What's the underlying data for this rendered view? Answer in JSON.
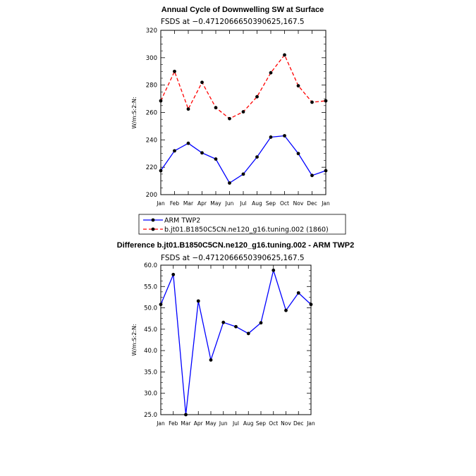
{
  "chart_data": [
    {
      "type": "line",
      "title": "Annual Cycle of Downwelling SW at Surface",
      "subtitle": "FSDS at −0.4712066650390625,167.5",
      "ylabel": "W/m:S:2:N:",
      "categories": [
        "Jan",
        "Feb",
        "Mar",
        "Apr",
        "May",
        "Jun",
        "Jul",
        "Aug",
        "Sep",
        "Oct",
        "Nov",
        "Dec",
        "Jan"
      ],
      "ylim": [
        200,
        320
      ],
      "yticks": [
        "200",
        "220",
        "240",
        "260",
        "280",
        "300",
        "320"
      ],
      "series": [
        {
          "name": "ARM TWP2",
          "color": "#0000ff",
          "dash": "solid",
          "values": [
            217.5,
            232,
            237.5,
            230.5,
            226,
            208.5,
            215,
            227.5,
            242,
            243,
            230,
            214,
            217.5
          ]
        },
        {
          "name": "b.jt01.B1850C5CN.ne120_g16.tuning.002 (1860)",
          "color": "#ff0000",
          "dash": "dashed",
          "values": [
            268.5,
            290,
            262.5,
            282,
            263.5,
            255.5,
            260.5,
            271.5,
            289,
            302,
            279.5,
            267.5,
            268.5
          ]
        }
      ]
    },
    {
      "type": "line",
      "title": "Difference b.jt01.B1850C5CN.ne120_g16.tuning.002 - ARM TWP2",
      "subtitle": "FSDS at −0.4712066650390625,167.5",
      "ylabel": "W/m:S:2:N:",
      "categories": [
        "Jan",
        "Feb",
        "Mar",
        "Apr",
        "May",
        "Jun",
        "Jul",
        "Aug",
        "Sep",
        "Oct",
        "Nov",
        "Dec",
        "Jan"
      ],
      "ylim": [
        25,
        60
      ],
      "yticks": [
        "25.0",
        "30.0",
        "35.0",
        "40.0",
        "45.0",
        "50.0",
        "55.0",
        "60.0"
      ],
      "series": [
        {
          "color": "#0000ff",
          "values": [
            50.8,
            57.8,
            25.0,
            51.6,
            37.8,
            46.6,
            45.6,
            44.0,
            46.5,
            58.8,
            49.4,
            53.5,
            50.8
          ]
        }
      ]
    }
  ]
}
